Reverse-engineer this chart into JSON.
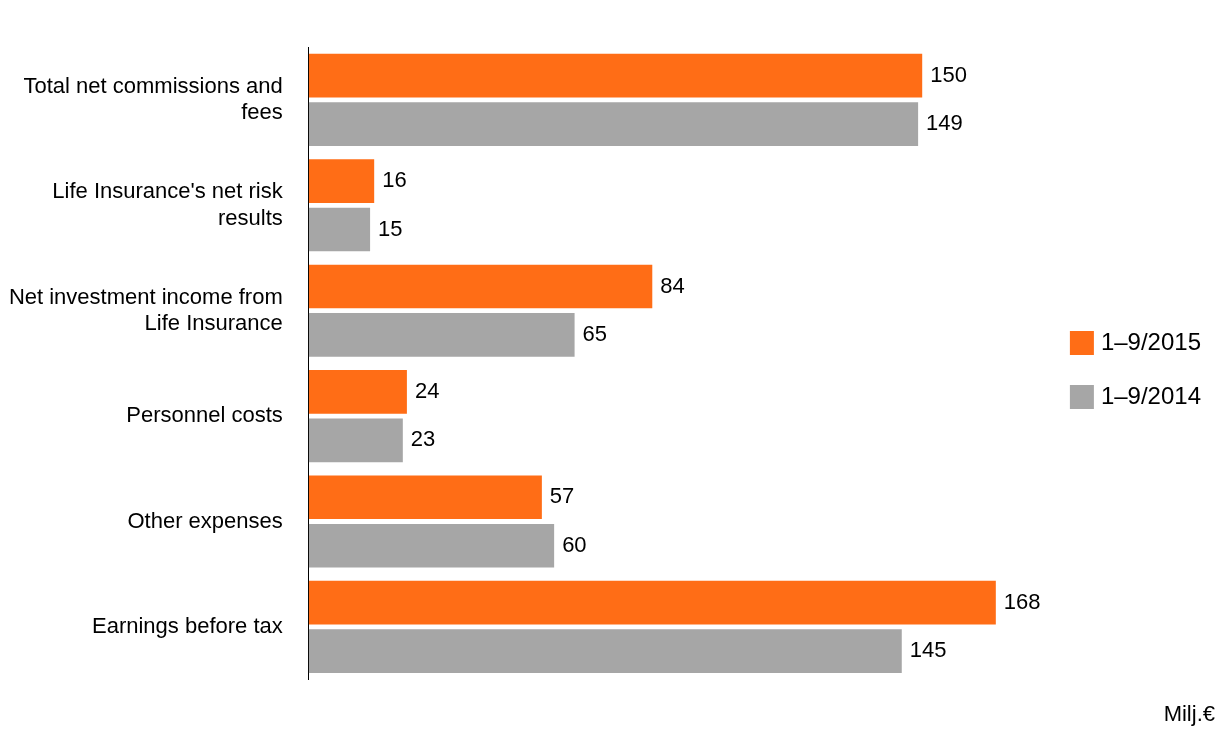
{
  "chart_data": {
    "type": "bar",
    "orientation": "horizontal",
    "categories": [
      "Total net commissions and fees",
      "Life Insurance's net risk results",
      "Net investment income from Life Insurance",
      "Personnel costs",
      "Other expenses",
      "Earnings before tax"
    ],
    "series": [
      {
        "name": "1–9/2015",
        "color": "#ff6d16",
        "values": [
          150,
          16,
          84,
          24,
          57,
          168
        ]
      },
      {
        "name": "1–9/2014",
        "color": "#a6a6a6",
        "values": [
          149,
          15,
          65,
          23,
          60,
          145
        ]
      }
    ],
    "data_labels": true,
    "grid": false,
    "legend": "right",
    "tick_labels": "y",
    "annotations": [
      "Milj.€"
    ]
  }
}
